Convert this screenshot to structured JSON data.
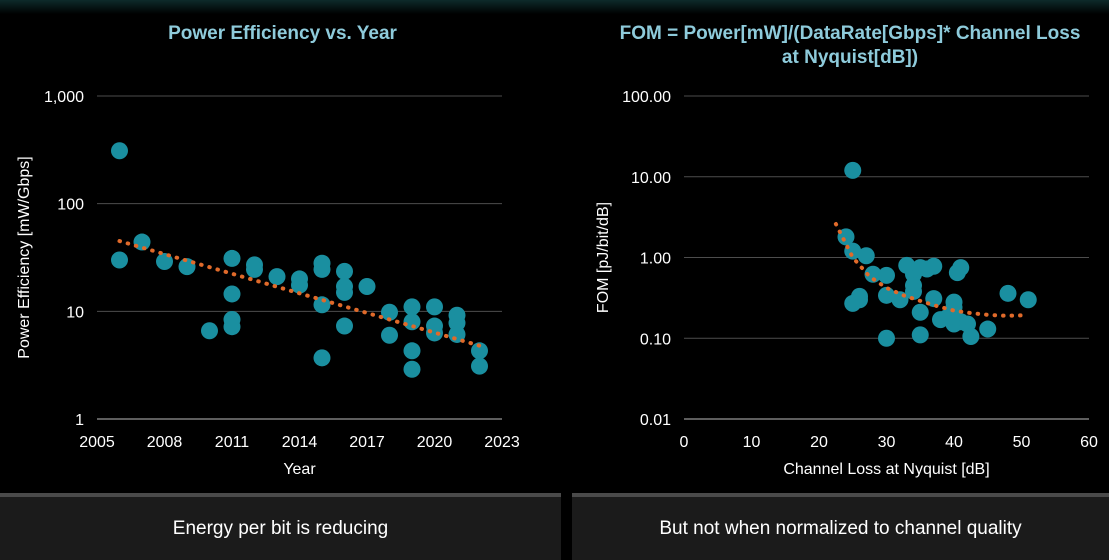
{
  "chart_data": [
    {
      "type": "scatter",
      "title": "Power Efficiency vs. Year",
      "xlabel": "Year",
      "ylabel": "Power Efficiency [mW/Gbps]",
      "xlim": [
        2005,
        2023
      ],
      "ylim": [
        1,
        1000
      ],
      "yscale": "log",
      "xticks": [
        "2005",
        "2008",
        "2011",
        "2014",
        "2017",
        "2020",
        "2023"
      ],
      "yticks": [
        "1",
        "10",
        "100",
        "1,000"
      ],
      "grid": true,
      "marker_color": "#1a8fa0",
      "trendline_color": "#e06a2a",
      "trendline": {
        "type": "exponential",
        "x": [
          2006,
          2022
        ],
        "y": [
          45,
          4.8
        ]
      },
      "points": [
        {
          "x": 2006,
          "y": 310
        },
        {
          "x": 2006,
          "y": 30
        },
        {
          "x": 2007,
          "y": 44
        },
        {
          "x": 2008,
          "y": 29
        },
        {
          "x": 2009,
          "y": 26
        },
        {
          "x": 2010,
          "y": 6.6
        },
        {
          "x": 2011,
          "y": 31
        },
        {
          "x": 2011,
          "y": 14.5
        },
        {
          "x": 2011,
          "y": 8.4
        },
        {
          "x": 2011,
          "y": 7.2
        },
        {
          "x": 2012,
          "y": 27
        },
        {
          "x": 2012,
          "y": 24.5
        },
        {
          "x": 2013,
          "y": 21
        },
        {
          "x": 2014,
          "y": 20
        },
        {
          "x": 2014,
          "y": 17.5
        },
        {
          "x": 2015,
          "y": 28
        },
        {
          "x": 2015,
          "y": 24.5
        },
        {
          "x": 2015,
          "y": 11.5
        },
        {
          "x": 2015,
          "y": 3.7
        },
        {
          "x": 2016,
          "y": 23.5
        },
        {
          "x": 2016,
          "y": 17
        },
        {
          "x": 2016,
          "y": 15
        },
        {
          "x": 2016,
          "y": 7.3
        },
        {
          "x": 2017,
          "y": 17
        },
        {
          "x": 2018,
          "y": 9.8
        },
        {
          "x": 2018,
          "y": 6
        },
        {
          "x": 2019,
          "y": 11
        },
        {
          "x": 2019,
          "y": 8
        },
        {
          "x": 2019,
          "y": 4.3
        },
        {
          "x": 2019,
          "y": 2.9
        },
        {
          "x": 2020,
          "y": 11
        },
        {
          "x": 2020,
          "y": 7.3
        },
        {
          "x": 2020,
          "y": 6.3
        },
        {
          "x": 2021,
          "y": 9.2
        },
        {
          "x": 2021,
          "y": 7.8
        },
        {
          "x": 2021,
          "y": 6.1
        },
        {
          "x": 2022,
          "y": 4.3
        },
        {
          "x": 2022,
          "y": 3.1
        }
      ]
    },
    {
      "type": "scatter",
      "title": "FOM = Power[mW]/(DataRate[Gbps]* Channel Loss at Nyquist[dB])",
      "xlabel": "Channel Loss at Nyquist [dB]",
      "ylabel": "FOM [pJ/bit/dB]",
      "xlim": [
        0,
        60
      ],
      "ylim": [
        0.01,
        100
      ],
      "yscale": "log",
      "xticks": [
        "0",
        "10",
        "20",
        "30",
        "40",
        "50",
        "60"
      ],
      "yticks": [
        "0.01",
        "0.10",
        "1.00",
        "10.00",
        "100.00"
      ],
      "grid": true,
      "marker_color": "#1a8fa0",
      "trendline_color": "#e06a2a",
      "trendline": {
        "type": "polynomial",
        "x": [
          22.5,
          25,
          27.5,
          30,
          32.5,
          35,
          37.5,
          40,
          42.5,
          45,
          47.5,
          50,
          51
        ],
        "y": [
          2.6,
          1.0,
          0.58,
          0.42,
          0.34,
          0.29,
          0.25,
          0.22,
          0.205,
          0.195,
          0.19,
          0.192,
          0.195
        ]
      },
      "points": [
        {
          "x": 25,
          "y": 12
        },
        {
          "x": 24,
          "y": 1.8
        },
        {
          "x": 25,
          "y": 1.2
        },
        {
          "x": 27,
          "y": 1.05
        },
        {
          "x": 25,
          "y": 0.27
        },
        {
          "x": 26,
          "y": 0.3
        },
        {
          "x": 26,
          "y": 0.33
        },
        {
          "x": 28,
          "y": 0.62
        },
        {
          "x": 30,
          "y": 0.6
        },
        {
          "x": 30,
          "y": 0.34
        },
        {
          "x": 30,
          "y": 0.1
        },
        {
          "x": 32,
          "y": 0.3
        },
        {
          "x": 33,
          "y": 0.8
        },
        {
          "x": 34,
          "y": 0.62
        },
        {
          "x": 34,
          "y": 0.45
        },
        {
          "x": 34,
          "y": 0.38
        },
        {
          "x": 35,
          "y": 0.75
        },
        {
          "x": 36,
          "y": 0.72
        },
        {
          "x": 37,
          "y": 0.78
        },
        {
          "x": 35,
          "y": 0.21
        },
        {
          "x": 35,
          "y": 0.11
        },
        {
          "x": 37,
          "y": 0.31
        },
        {
          "x": 38,
          "y": 0.17
        },
        {
          "x": 39,
          "y": 0.18
        },
        {
          "x": 40,
          "y": 0.28
        },
        {
          "x": 40,
          "y": 0.24
        },
        {
          "x": 40,
          "y": 0.15
        },
        {
          "x": 40.5,
          "y": 0.65
        },
        {
          "x": 41,
          "y": 0.75
        },
        {
          "x": 41,
          "y": 0.16
        },
        {
          "x": 42,
          "y": 0.15
        },
        {
          "x": 42.5,
          "y": 0.105
        },
        {
          "x": 45,
          "y": 0.13
        },
        {
          "x": 48,
          "y": 0.36
        },
        {
          "x": 51,
          "y": 0.3
        }
      ]
    }
  ],
  "captions": {
    "left": "Energy per bit is reducing",
    "right": "But not when normalized to channel quality"
  }
}
